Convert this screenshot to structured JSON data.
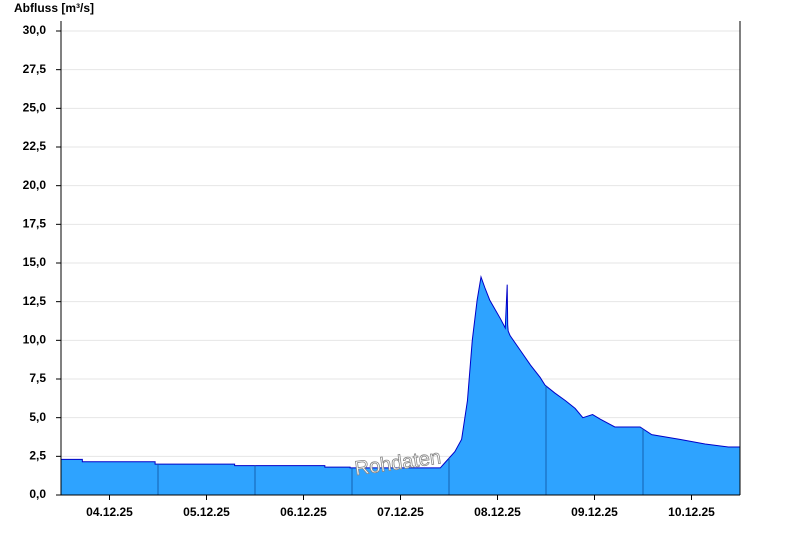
{
  "chart_data": {
    "type": "area",
    "ylabel": "Abfluss [m³/s]",
    "annotation": "Rohdaten",
    "xlim": [
      0,
      7
    ],
    "xticks": [
      {
        "value": 0.5,
        "label": "04.12.25"
      },
      {
        "value": 1.5,
        "label": "05.12.25"
      },
      {
        "value": 2.5,
        "label": "06.12.25"
      },
      {
        "value": 3.5,
        "label": "07.12.25"
      },
      {
        "value": 4.5,
        "label": "08.12.25"
      },
      {
        "value": 5.5,
        "label": "09.12.25"
      },
      {
        "value": 6.5,
        "label": "10.12.25"
      }
    ],
    "ylim": [
      0,
      30
    ],
    "yticks": [
      {
        "value": 0,
        "label": "0,0"
      },
      {
        "value": 2.5,
        "label": "2,5"
      },
      {
        "value": 5,
        "label": "5,0"
      },
      {
        "value": 7.5,
        "label": "7,5"
      },
      {
        "value": 10,
        "label": "10,0"
      },
      {
        "value": 12.5,
        "label": "12,5"
      },
      {
        "value": 15,
        "label": "15,0"
      },
      {
        "value": 17.5,
        "label": "17,5"
      },
      {
        "value": 20,
        "label": "20,0"
      },
      {
        "value": 22.5,
        "label": "22,5"
      },
      {
        "value": 25,
        "label": "25,0"
      },
      {
        "value": 27.5,
        "label": "27,5"
      },
      {
        "value": 30,
        "label": "30,0"
      }
    ],
    "grid": true,
    "color": "#2ea3ff",
    "line_color": "#0000c8",
    "x": [
      0,
      0.22,
      0.22,
      0.97,
      0.97,
      1.79,
      1.79,
      2.72,
      2.72,
      2.98,
      2.98,
      3.91,
      3.96,
      4.06,
      4.13,
      4.19,
      4.24,
      4.29,
      4.33,
      4.37,
      4.42,
      4.53,
      4.58,
      4.6,
      4.605,
      4.61,
      4.63,
      4.73,
      4.84,
      4.94,
      4.99,
      5.09,
      5.2,
      5.3,
      5.38,
      5.48,
      5.56,
      5.71,
      5.97,
      6.09,
      6.38,
      6.64,
      6.88,
      7
    ],
    "values": [
      2.3,
      2.3,
      2.15,
      2.15,
      2.0,
      2.0,
      1.9,
      1.9,
      1.8,
      1.8,
      1.75,
      1.75,
      2.1,
      2.8,
      3.6,
      6.1,
      10.0,
      12.6,
      14.1,
      13.4,
      12.6,
      11.4,
      10.8,
      13.6,
      11.0,
      10.6,
      10.3,
      9.4,
      8.4,
      7.6,
      7.1,
      6.6,
      6.1,
      5.6,
      5.0,
      5.2,
      4.9,
      4.4,
      4.4,
      3.9,
      3.6,
      3.3,
      3.1,
      3.1
    ]
  }
}
